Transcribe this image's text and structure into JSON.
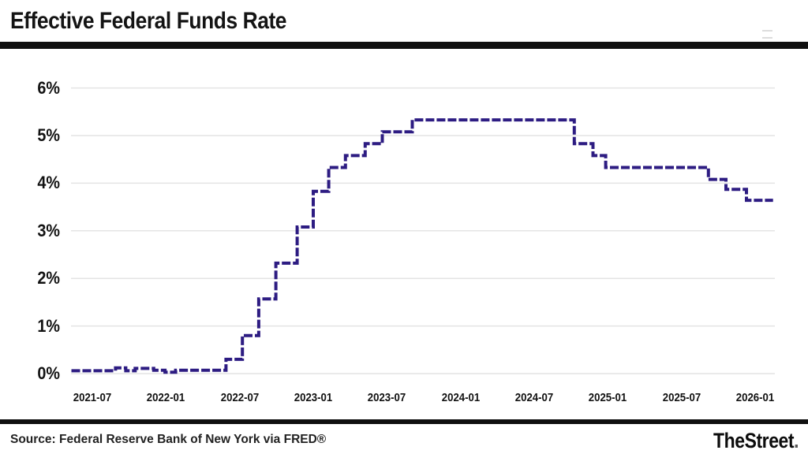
{
  "header": {
    "title": "Effective Federal Funds Rate"
  },
  "chart_data": {
    "type": "line",
    "step": true,
    "title": "Effective Federal Funds Rate",
    "ylabel": "",
    "xlabel": "",
    "ylim": [
      0,
      6
    ],
    "grid": "horizontal",
    "legend": "none",
    "line_color": "#2d1c82",
    "line_style": "dashed",
    "grid_color": "#e4e4e4",
    "x_domain": [
      "2021-05-10",
      "2026-02-15"
    ],
    "x_ticks": [
      {
        "label": "2021-07",
        "date": "2021-07-01"
      },
      {
        "label": "2022-01",
        "date": "2022-01-01"
      },
      {
        "label": "2022-07",
        "date": "2022-07-01"
      },
      {
        "label": "2023-01",
        "date": "2023-01-01"
      },
      {
        "label": "2023-07",
        "date": "2023-07-01"
      },
      {
        "label": "2024-01",
        "date": "2024-01-01"
      },
      {
        "label": "2024-07",
        "date": "2024-07-01"
      },
      {
        "label": "2025-01",
        "date": "2025-01-01"
      },
      {
        "label": "2025-07",
        "date": "2025-07-01"
      },
      {
        "label": "2026-01",
        "date": "2026-01-01"
      }
    ],
    "y_ticks": [
      {
        "label": "0%",
        "value": 0
      },
      {
        "label": "1%",
        "value": 1
      },
      {
        "label": "2%",
        "value": 2
      },
      {
        "label": "3%",
        "value": 3
      },
      {
        "label": "4%",
        "value": 4
      },
      {
        "label": "5%",
        "value": 5
      },
      {
        "label": "6%",
        "value": 6
      }
    ],
    "series": [
      {
        "name": "Effective Federal Funds Rate",
        "points": [
          {
            "date": "2021-05-10",
            "value": 0.06
          },
          {
            "date": "2021-08-28",
            "value": 0.12
          },
          {
            "date": "2021-09-23",
            "value": 0.06
          },
          {
            "date": "2021-10-16",
            "value": 0.11
          },
          {
            "date": "2021-12-01",
            "value": 0.07
          },
          {
            "date": "2021-12-29",
            "value": 0.03
          },
          {
            "date": "2022-01-25",
            "value": 0.07
          },
          {
            "date": "2022-05-28",
            "value": 0.3
          },
          {
            "date": "2022-07-08",
            "value": 0.8
          },
          {
            "date": "2022-08-18",
            "value": 1.57
          },
          {
            "date": "2022-09-30",
            "value": 2.32
          },
          {
            "date": "2022-11-22",
            "value": 3.08
          },
          {
            "date": "2023-01-01",
            "value": 3.83
          },
          {
            "date": "2023-02-09",
            "value": 4.33
          },
          {
            "date": "2023-03-20",
            "value": 4.58
          },
          {
            "date": "2023-05-08",
            "value": 4.83
          },
          {
            "date": "2023-06-20",
            "value": 5.08
          },
          {
            "date": "2023-09-03",
            "value": 5.33
          },
          {
            "date": "2024-10-09",
            "value": 4.83
          },
          {
            "date": "2024-11-25",
            "value": 4.58
          },
          {
            "date": "2024-12-26",
            "value": 4.33
          },
          {
            "date": "2025-09-07",
            "value": 4.08
          },
          {
            "date": "2025-10-20",
            "value": 3.87
          },
          {
            "date": "2025-12-10",
            "value": 3.64
          },
          {
            "date": "2026-02-15",
            "value": 3.64
          }
        ]
      }
    ]
  },
  "footer": {
    "source": "Source: Federal Reserve Bank of New York via FRED®",
    "brand": "TheStreet",
    "brand_dot": "."
  }
}
